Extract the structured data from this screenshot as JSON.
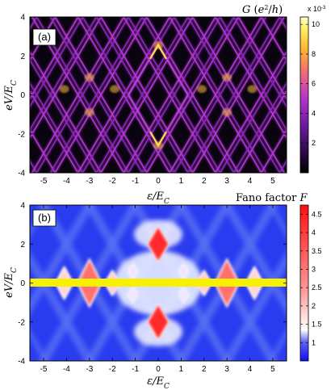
{
  "chart_data": [
    {
      "type": "heatmap",
      "panel_label": "(a)",
      "xlabel": "ε/E_C",
      "ylabel": "eV/E_C",
      "xlim": [
        -5.6,
        5.6
      ],
      "ylim": [
        -4,
        4
      ],
      "x_ticks": [
        "-5",
        "-4",
        "-3",
        "-2",
        "-1",
        "0",
        "1",
        "2",
        "3",
        "4",
        "5"
      ],
      "y_ticks": [
        "-4",
        "-2",
        "0",
        "2",
        "4"
      ],
      "colorbar": {
        "title": "G (e²/h)",
        "multiplier": "x 10",
        "multiplier_exp": "-3",
        "range": [
          0,
          10.5
        ],
        "ticks": [
          "2",
          "4",
          "6",
          "8",
          "10"
        ],
        "tick_values": [
          2,
          4,
          6,
          8,
          10
        ],
        "colors": [
          "#000000",
          "#3a0a5c",
          "#7a1fb0",
          "#c23ad0",
          "#f07a6a",
          "#ffd13a",
          "#ffffc0"
        ]
      },
      "features": "Coulomb diamond pattern: bright conductance lines along |eV| = 2|ε - 2n·E_C| with peaks up to ~10e-3 e²/h near (0, ±2.5)"
    },
    {
      "type": "heatmap",
      "panel_label": "(b)",
      "xlabel": "ε/E_C",
      "ylabel": "eV/E_C",
      "xlim": [
        -5.6,
        5.6
      ],
      "ylim": [
        -4,
        4
      ],
      "x_ticks": [
        "-5",
        "-4",
        "-3",
        "-2",
        "-1",
        "0",
        "1",
        "2",
        "3",
        "4",
        "5"
      ],
      "y_ticks": [
        "-4",
        "-2",
        "0",
        "2",
        "4"
      ],
      "colorbar": {
        "title": "Fano factor F",
        "range": [
          0.5,
          4.75
        ],
        "ticks": [
          "1",
          "1.5",
          "2",
          "2.5",
          "3",
          "3.5",
          "4",
          "4.5"
        ],
        "tick_values": [
          1,
          1.5,
          2,
          2.5,
          3,
          3.5,
          4,
          4.5
        ],
        "colors": [
          "#1515ee",
          "#6a6af2",
          "#ffffff",
          "#ff8a8a",
          "#ff1a1a"
        ]
      },
      "features": "Blue background F≈1 with red (F≈2–4.7) diamonds at ε≈-4, -3, -2, 0, 2, 3, 4 and a yellow band at eV≈0"
    }
  ]
}
